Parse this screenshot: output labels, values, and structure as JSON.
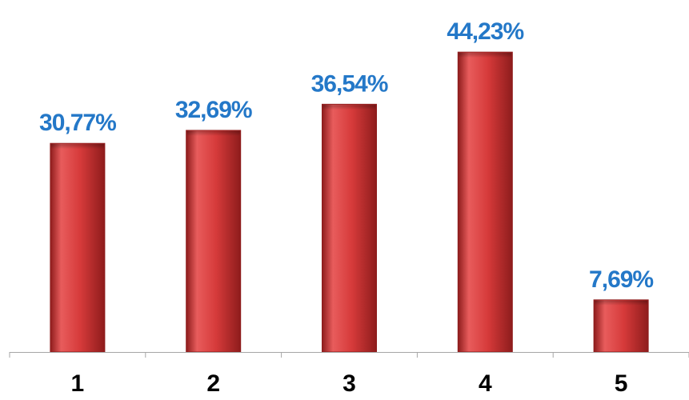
{
  "chart_data": {
    "type": "bar",
    "title": "",
    "xlabel": "",
    "ylabel": "",
    "categories": [
      "1",
      "2",
      "3",
      "4",
      "5"
    ],
    "values": [
      30.77,
      32.69,
      36.54,
      44.23,
      7.69
    ],
    "value_labels": [
      "30,77%",
      "32,69%",
      "36,54%",
      "44,23%",
      "7,69%"
    ],
    "ylim": [
      0,
      50
    ],
    "grid": false,
    "legend": "none",
    "colors": {
      "bar": "#d63a3a",
      "bar_dark": "#8e1c1c",
      "bar_light": "#e85c5c",
      "value_label": "#2478c8",
      "axis": "#a6a6a6"
    }
  }
}
